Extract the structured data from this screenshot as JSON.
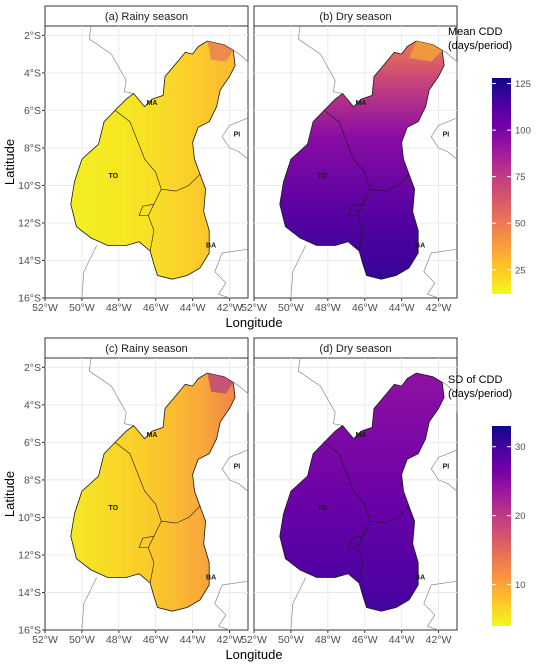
{
  "axis": {
    "xlabel": "Longitude",
    "ylabel": "Latitude",
    "x_ticks": [
      "52°W",
      "50°W",
      "48°W",
      "46°W",
      "44°W",
      "42°W"
    ],
    "y_ticks": [
      "2°S",
      "4°S",
      "6°S",
      "8°S",
      "10°S",
      "12°S",
      "14°S",
      "16°S"
    ]
  },
  "state_labels": [
    "MA",
    "PI",
    "TO",
    "BA"
  ],
  "rows": [
    {
      "legend": {
        "title_line1": "Mean CDD",
        "title_line2": "(days/period)",
        "ticks": [
          "125",
          "100",
          "75",
          "50",
          "25"
        ],
        "tick_values": [
          125,
          100,
          75,
          50,
          25
        ],
        "range": [
          12,
          128
        ]
      },
      "panels": [
        {
          "title": "(a) Rainy season",
          "scheme": "rainy"
        },
        {
          "title": "(b) Dry season",
          "scheme": "dry"
        }
      ]
    },
    {
      "legend": {
        "title_line1": "SD of CDD",
        "title_line2": "(days/period)",
        "ticks": [
          "30",
          "20",
          "10"
        ],
        "tick_values": [
          30,
          20,
          10
        ],
        "range": [
          4,
          33
        ]
      },
      "panels": [
        {
          "title": "(c) Rainy season",
          "scheme": "rainy_sd"
        },
        {
          "title": "(d) Dry season",
          "scheme": "dry_sd"
        }
      ]
    }
  ],
  "colors": {
    "plasma": [
      "#0d0887",
      "#46039f",
      "#7201a8",
      "#9c179e",
      "#bd3786",
      "#d8576b",
      "#ed7953",
      "#fb9f3a",
      "#fdca26",
      "#f0f921"
    ],
    "panel_bg": "#ffffff",
    "grid": "#ebebeb",
    "strip_bg": "#ffffff",
    "outline": "#1a1a1a",
    "neighbor_line": "#8c8c8c"
  }
}
